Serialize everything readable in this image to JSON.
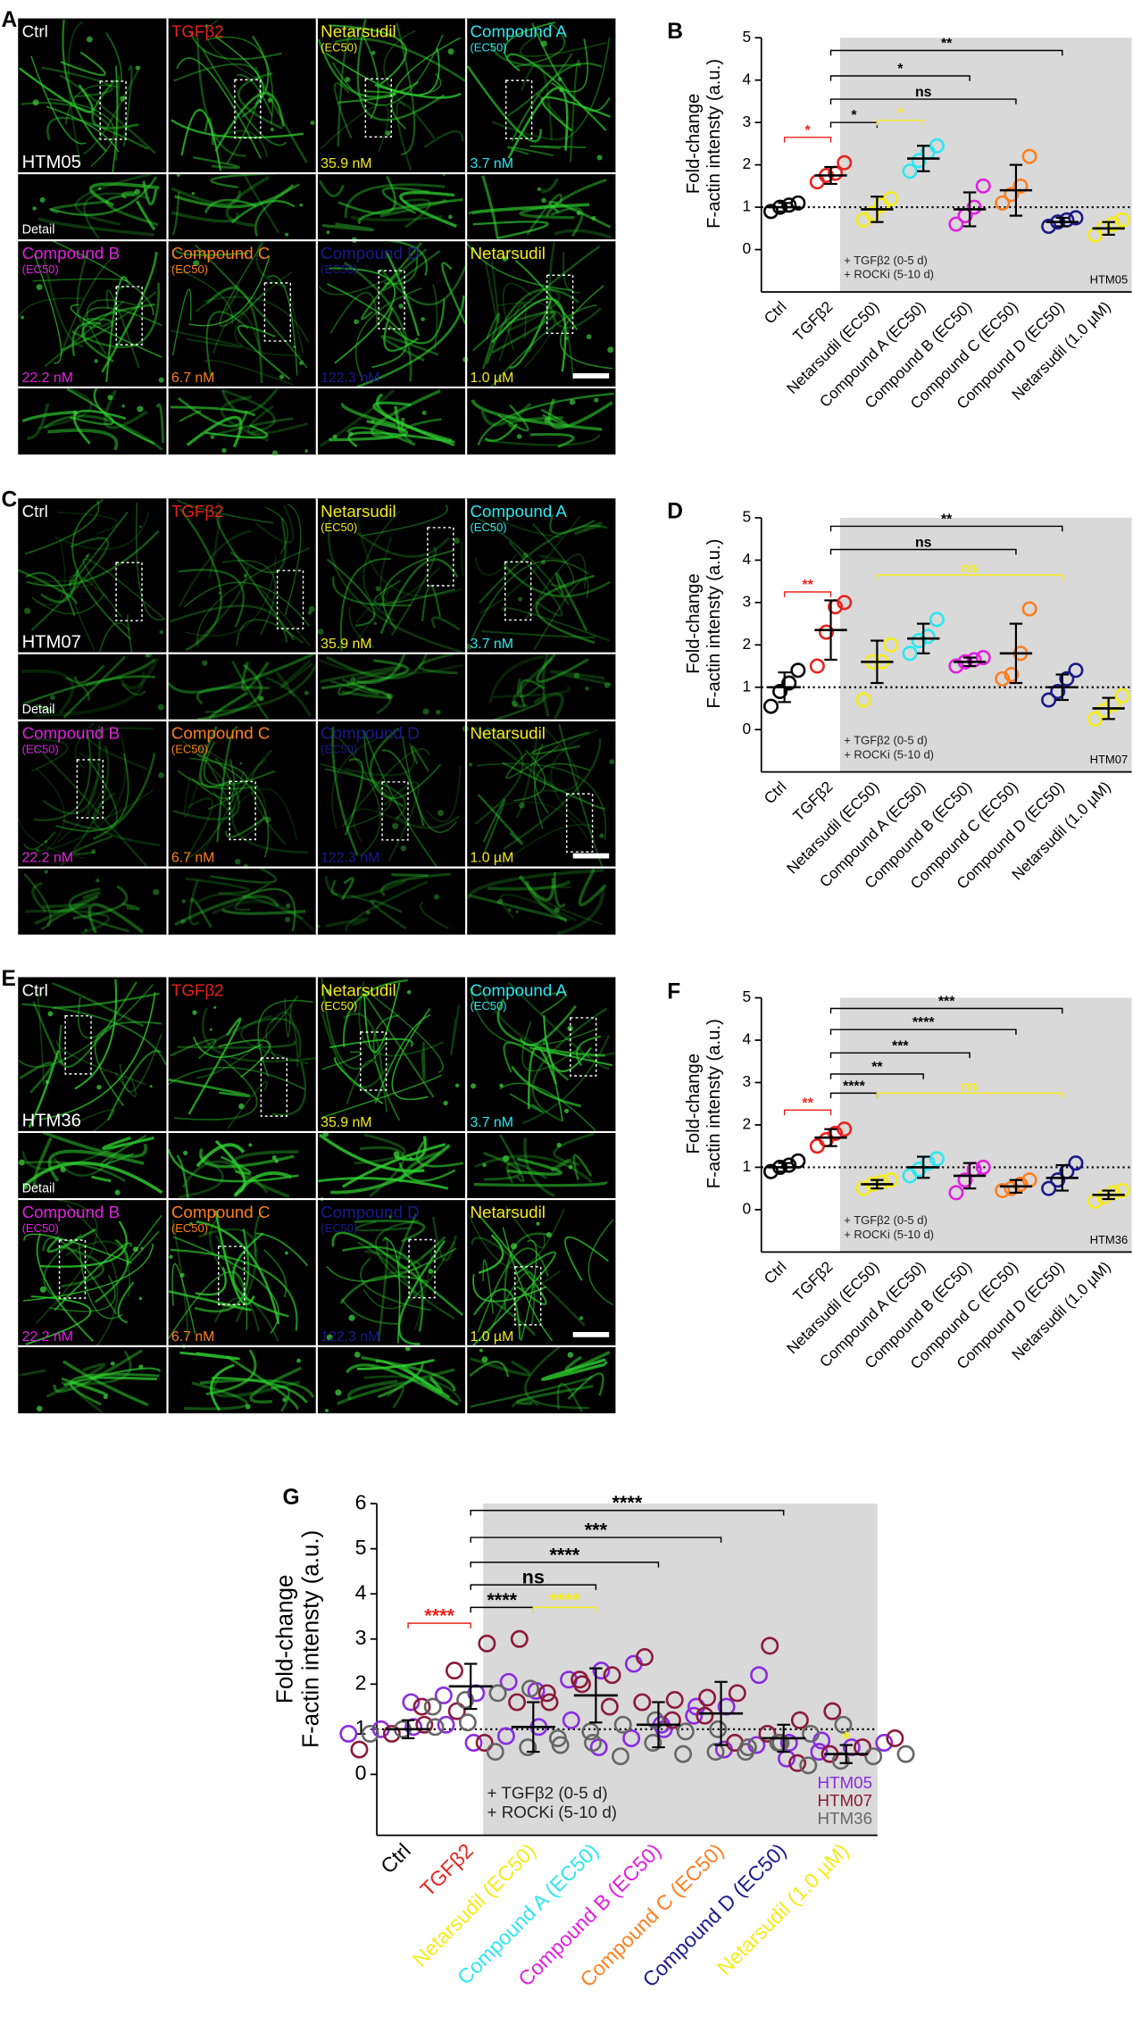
{
  "figure_panels": [
    {
      "letter": "A",
      "cell_line": "HTM05",
      "detail_label": "Detail",
      "wells": [
        {
          "name": "Ctrl",
          "color": "#ffffff"
        },
        {
          "name": "TGFβ2",
          "color": "#e8231e"
        },
        {
          "name": "Netarsudil",
          "sub": "(EC50)",
          "conc": "35.9 nM",
          "color": "#f5eb1a"
        },
        {
          "name": "Compound A",
          "sub": "(EC50)",
          "conc": "3.7 nM",
          "color": "#2ee6f0"
        },
        {
          "name": "Compound B",
          "sub": "(EC50)",
          "conc": "22.2 nM",
          "color": "#e020e0"
        },
        {
          "name": "Compound C",
          "sub": "(EC50)",
          "conc": "6.7 nM",
          "color": "#ff7f1e"
        },
        {
          "name": "Compound D",
          "sub": "(EC50)",
          "conc": "122.3 nM",
          "color": "#1a1a8c"
        },
        {
          "name": "Netarsudil",
          "conc": "1.0 µM",
          "color": "#f5eb1a"
        }
      ]
    },
    {
      "letter": "C",
      "cell_line": "HTM07",
      "detail_label": "Detail",
      "wells": [
        {
          "name": "Ctrl",
          "color": "#ffffff"
        },
        {
          "name": "TGFβ2",
          "color": "#e8231e"
        },
        {
          "name": "Netarsudil",
          "sub": "(EC50)",
          "conc": "35.9 nM",
          "color": "#f5eb1a"
        },
        {
          "name": "Compound A",
          "sub": "(EC50)",
          "conc": "3.7 nM",
          "color": "#2ee6f0"
        },
        {
          "name": "Compound B",
          "sub": "(EC50)",
          "conc": "22.2 nM",
          "color": "#e020e0"
        },
        {
          "name": "Compound C",
          "sub": "(EC50)",
          "conc": "6.7 nM",
          "color": "#ff7f1e"
        },
        {
          "name": "Compound D",
          "sub": "(EC50)",
          "conc": "122.3 nM",
          "color": "#1a1a8c"
        },
        {
          "name": "Netarsudil",
          "conc": "1.0 µM",
          "color": "#f5eb1a"
        }
      ]
    },
    {
      "letter": "E",
      "cell_line": "HTM36",
      "detail_label": "Detail",
      "wells": [
        {
          "name": "Ctrl",
          "color": "#ffffff"
        },
        {
          "name": "TGFβ2",
          "color": "#e8231e"
        },
        {
          "name": "Netarsudil",
          "sub": "(EC50)",
          "conc": "35.9 nM",
          "color": "#f5eb1a"
        },
        {
          "name": "Compound A",
          "sub": "(EC50)",
          "conc": "3.7 nM",
          "color": "#2ee6f0"
        },
        {
          "name": "Compound B",
          "sub": "(EC50)",
          "conc": "22.2 nM",
          "color": "#e020e0"
        },
        {
          "name": "Compound C",
          "sub": "(EC50)",
          "conc": "6.7 nM",
          "color": "#ff7f1e"
        },
        {
          "name": "Compound D",
          "sub": "(EC50)",
          "conc": "122.3 nM",
          "color": "#1a1a8c"
        },
        {
          "name": "Netarsudil",
          "conc": "1.0 µM",
          "color": "#f5eb1a"
        }
      ]
    }
  ],
  "chart_data": [
    {
      "type": "dot",
      "label": "B",
      "ylabel": [
        "Fold-change",
        "F-actin intensty (a.u.)"
      ],
      "categories": [
        "Ctrl",
        "TGFβ2",
        "Netarsudil (EC50)",
        "Compound A (EC50)",
        "Compound B (EC50)",
        "Compound C (EC50)",
        "Compound D (EC50)",
        "Netarsudil (1.0 µM)"
      ],
      "category_colors": [
        "#000000",
        "#e8231e",
        "#f5eb1a",
        "#2ee6f0",
        "#e020e0",
        "#ff7f1e",
        "#1a1a8c",
        "#f5eb1a"
      ],
      "points": [
        [
          0.9,
          1.0,
          1.05,
          1.1
        ],
        [
          1.6,
          1.75,
          1.8,
          2.05
        ],
        [
          0.7,
          0.85,
          1.05,
          1.2
        ],
        [
          1.85,
          2.1,
          2.3,
          2.45
        ],
        [
          0.6,
          0.8,
          1.0,
          1.5
        ],
        [
          1.1,
          1.3,
          1.5,
          2.2
        ],
        [
          0.55,
          0.65,
          0.7,
          0.75
        ],
        [
          0.35,
          0.5,
          0.6,
          0.7
        ]
      ],
      "mean": [
        1.0,
        1.75,
        0.95,
        2.15,
        0.95,
        1.4,
        0.65,
        0.5
      ],
      "sd": [
        0.1,
        0.2,
        0.3,
        0.3,
        0.4,
        0.6,
        0.1,
        0.15
      ],
      "ylim": [
        -1,
        5
      ],
      "yticks": [
        0,
        1,
        2,
        3,
        4,
        5
      ],
      "ref_line": 1,
      "shade_from": 2,
      "treatment": [
        "+ TGFβ2 (0-5 d)",
        "+ ROCKi (5-10 d)"
      ],
      "cell_line": "HTM05",
      "comparisons": [
        {
          "from": 1,
          "to": 6,
          "y": 4.7,
          "label": "**",
          "color": "#000000"
        },
        {
          "from": 1,
          "to": 4,
          "y": 4.1,
          "label": "*",
          "color": "#000000"
        },
        {
          "from": 1,
          "to": 5,
          "y": 3.55,
          "label": "ns",
          "color": "#000000"
        },
        {
          "from": 1,
          "to": 2,
          "y": 3.0,
          "label": "*",
          "color": "#000000"
        },
        {
          "from": 2,
          "to": 3,
          "y": 3.05,
          "label": "*",
          "color": "#f5eb1a"
        },
        {
          "from": 0,
          "to": 1,
          "y": 2.65,
          "label": "*",
          "color": "#e8231e"
        }
      ]
    },
    {
      "type": "dot",
      "label": "D",
      "ylabel": [
        "Fold-change",
        "F-actin intensty (a.u.)"
      ],
      "categories": [
        "Ctrl",
        "TGFβ2",
        "Netarsudil (EC50)",
        "Compound A (EC50)",
        "Compound B (EC50)",
        "Compound C (EC50)",
        "Compound D (EC50)",
        "Netarsudil (1.0 µM)"
      ],
      "category_colors": [
        "#000000",
        "#e8231e",
        "#f5eb1a",
        "#2ee6f0",
        "#e020e0",
        "#ff7f1e",
        "#1a1a8c",
        "#f5eb1a"
      ],
      "points": [
        [
          0.55,
          0.9,
          1.1,
          1.4
        ],
        [
          1.5,
          2.3,
          2.9,
          3.0
        ],
        [
          0.7,
          1.6,
          1.6,
          2.0
        ],
        [
          1.8,
          2.1,
          2.2,
          2.6
        ],
        [
          1.5,
          1.6,
          1.65,
          1.7
        ],
        [
          1.2,
          1.3,
          1.8,
          2.85
        ],
        [
          0.7,
          0.9,
          1.2,
          1.4
        ],
        [
          0.25,
          0.45,
          0.6,
          0.8
        ]
      ],
      "mean": [
        1.0,
        2.35,
        1.6,
        2.15,
        1.6,
        1.8,
        1.0,
        0.5
      ],
      "sd": [
        0.35,
        0.7,
        0.5,
        0.35,
        0.1,
        0.7,
        0.3,
        0.25
      ],
      "ylim": [
        -1,
        5
      ],
      "yticks": [
        0,
        1,
        2,
        3,
        4,
        5
      ],
      "ref_line": 1,
      "shade_from": 2,
      "treatment": [
        "+ TGFβ2 (0-5 d)",
        "+ ROCKi (5-10 d)"
      ],
      "cell_line": "HTM07",
      "comparisons": [
        {
          "from": 1,
          "to": 6,
          "y": 4.8,
          "label": "**",
          "color": "#000000"
        },
        {
          "from": 1,
          "to": 5,
          "y": 4.25,
          "label": "ns",
          "color": "#000000"
        },
        {
          "from": 2,
          "to": 6,
          "y": 3.65,
          "label": "ns",
          "color": "#f5eb1a"
        },
        {
          "from": 0,
          "to": 1,
          "y": 3.25,
          "label": "**",
          "color": "#e8231e"
        }
      ]
    },
    {
      "type": "dot",
      "label": "F",
      "ylabel": [
        "Fold-change",
        "F-actin intensty (a.u.)"
      ],
      "categories": [
        "Ctrl",
        "TGFβ2",
        "Netarsudil (EC50)",
        "Compound A (EC50)",
        "Compound B (EC50)",
        "Compound C (EC50)",
        "Compound D (EC50)",
        "Netarsudil (1.0 µM)"
      ],
      "category_colors": [
        "#000000",
        "#e8231e",
        "#f5eb1a",
        "#2ee6f0",
        "#e020e0",
        "#ff7f1e",
        "#1a1a8c",
        "#f5eb1a"
      ],
      "points": [
        [
          0.9,
          1.0,
          1.05,
          1.15
        ],
        [
          1.5,
          1.65,
          1.8,
          1.9
        ],
        [
          0.5,
          0.6,
          0.65,
          0.7
        ],
        [
          0.8,
          0.95,
          1.1,
          1.2
        ],
        [
          0.4,
          0.7,
          0.95,
          1.0
        ],
        [
          0.45,
          0.5,
          0.6,
          0.7
        ],
        [
          0.5,
          0.7,
          0.9,
          1.1
        ],
        [
          0.2,
          0.3,
          0.4,
          0.45
        ]
      ],
      "mean": [
        1.0,
        1.7,
        0.6,
        1.0,
        0.8,
        0.55,
        0.75,
        0.35
      ],
      "sd": [
        0.1,
        0.2,
        0.1,
        0.25,
        0.3,
        0.15,
        0.3,
        0.1
      ],
      "ylim": [
        -1,
        5
      ],
      "yticks": [
        0,
        1,
        2,
        3,
        4,
        5
      ],
      "ref_line": 1,
      "shade_from": 2,
      "treatment": [
        "+ TGFβ2 (0-5 d)",
        "+ ROCKi (5-10 d)"
      ],
      "cell_line": "HTM36",
      "comparisons": [
        {
          "from": 1,
          "to": 6,
          "y": 4.75,
          "label": "***",
          "color": "#000000"
        },
        {
          "from": 1,
          "to": 5,
          "y": 4.25,
          "label": "****",
          "color": "#000000"
        },
        {
          "from": 1,
          "to": 4,
          "y": 3.7,
          "label": "***",
          "color": "#000000"
        },
        {
          "from": 1,
          "to": 3,
          "y": 3.2,
          "label": "**",
          "color": "#000000"
        },
        {
          "from": 1,
          "to": 2,
          "y": 2.75,
          "label": "****",
          "color": "#000000"
        },
        {
          "from": 2,
          "to": 6,
          "y": 2.75,
          "label": "ns",
          "color": "#f5eb1a"
        },
        {
          "from": 0,
          "to": 1,
          "y": 2.35,
          "label": "**",
          "color": "#e8231e"
        }
      ]
    },
    {
      "type": "dot",
      "label": "G",
      "ylabel": [
        "Fold-change",
        "F-actin intensty (a.u.)"
      ],
      "categories": [
        "Ctrl",
        "TGFβ2",
        "Netarsudil (EC50)",
        "Compound A (EC50)",
        "Compound B (EC50)",
        "Compound C (EC50)",
        "Compound D (EC50)",
        "Netarsudil (1.0 µM)"
      ],
      "category_colors": [
        "#000000",
        "#e8231e",
        "#f5eb1a",
        "#2ee6f0",
        "#e020e0",
        "#ff7f1e",
        "#1a1a8c",
        "#f5eb1a"
      ],
      "colored_labels": true,
      "series": [
        {
          "name": "HTM05",
          "color": "#8a2be2",
          "values": [
            [
              0.9,
              1.0,
              1.05,
              1.1
            ],
            [
              1.6,
              1.75,
              1.8,
              2.05
            ],
            [
              0.7,
              0.85,
              1.05,
              1.2
            ],
            [
              1.85,
              2.1,
              2.3,
              2.45
            ],
            [
              0.6,
              0.8,
              1.0,
              1.5
            ],
            [
              1.1,
              1.3,
              1.5,
              2.2
            ],
            [
              0.55,
              0.65,
              0.7,
              0.75
            ],
            [
              0.35,
              0.5,
              0.6,
              0.7
            ]
          ]
        },
        {
          "name": "HTM07",
          "color": "#8b1a3a",
          "values": [
            [
              0.55,
              0.9,
              1.1,
              1.4
            ],
            [
              1.5,
              2.3,
              2.9,
              3.0
            ],
            [
              0.7,
              1.6,
              1.6,
              2.0
            ],
            [
              1.8,
              2.1,
              2.2,
              2.6
            ],
            [
              1.5,
              1.6,
              1.65,
              1.7
            ],
            [
              1.2,
              1.3,
              1.8,
              2.85
            ],
            [
              0.7,
              0.9,
              1.2,
              1.4
            ],
            [
              0.25,
              0.45,
              0.6,
              0.8
            ]
          ]
        },
        {
          "name": "HTM36",
          "color": "#666666",
          "values": [
            [
              0.9,
              1.0,
              1.05,
              1.15
            ],
            [
              1.5,
              1.65,
              1.8,
              1.9
            ],
            [
              0.5,
              0.6,
              0.65,
              0.7
            ],
            [
              0.8,
              0.95,
              1.1,
              1.2
            ],
            [
              0.4,
              0.7,
              0.95,
              1.0
            ],
            [
              0.45,
              0.5,
              0.6,
              0.7
            ],
            [
              0.5,
              0.7,
              0.9,
              1.1
            ],
            [
              0.2,
              0.3,
              0.4,
              0.45
            ]
          ]
        }
      ],
      "mean": [
        1.0,
        1.95,
        1.05,
        1.75,
        1.1,
        1.35,
        0.8,
        0.45
      ],
      "sd": [
        0.2,
        0.5,
        0.55,
        0.6,
        0.5,
        0.7,
        0.3,
        0.2
      ],
      "ylim": [
        -1.35,
        6
      ],
      "yticks": [
        0,
        1,
        2,
        3,
        4,
        5,
        6
      ],
      "ref_line": 1,
      "shade_from": 2,
      "treatment": [
        "+ TGFβ2 (0-5 d)",
        "+ ROCKi (5-10 d)"
      ],
      "comparisons": [
        {
          "from": 1,
          "to": 6,
          "y": 5.85,
          "label": "****",
          "color": "#000000"
        },
        {
          "from": 1,
          "to": 5,
          "y": 5.25,
          "label": "***",
          "color": "#000000"
        },
        {
          "from": 1,
          "to": 4,
          "y": 4.7,
          "label": "****",
          "color": "#000000"
        },
        {
          "from": 1,
          "to": 3,
          "y": 4.2,
          "label": "ns",
          "color": "#000000"
        },
        {
          "from": 1,
          "to": 2,
          "y": 3.7,
          "label": "****",
          "color": "#000000"
        },
        {
          "from": 2,
          "to": 3,
          "y": 3.7,
          "label": "****",
          "color": "#f5eb1a"
        },
        {
          "from": 0,
          "to": 1,
          "y": 3.35,
          "label": "****",
          "color": "#e8231e"
        }
      ],
      "notes": [
        {
          "category": 7,
          "y": 0.75,
          "label": "*",
          "color": "#f5eb1a"
        }
      ]
    }
  ]
}
